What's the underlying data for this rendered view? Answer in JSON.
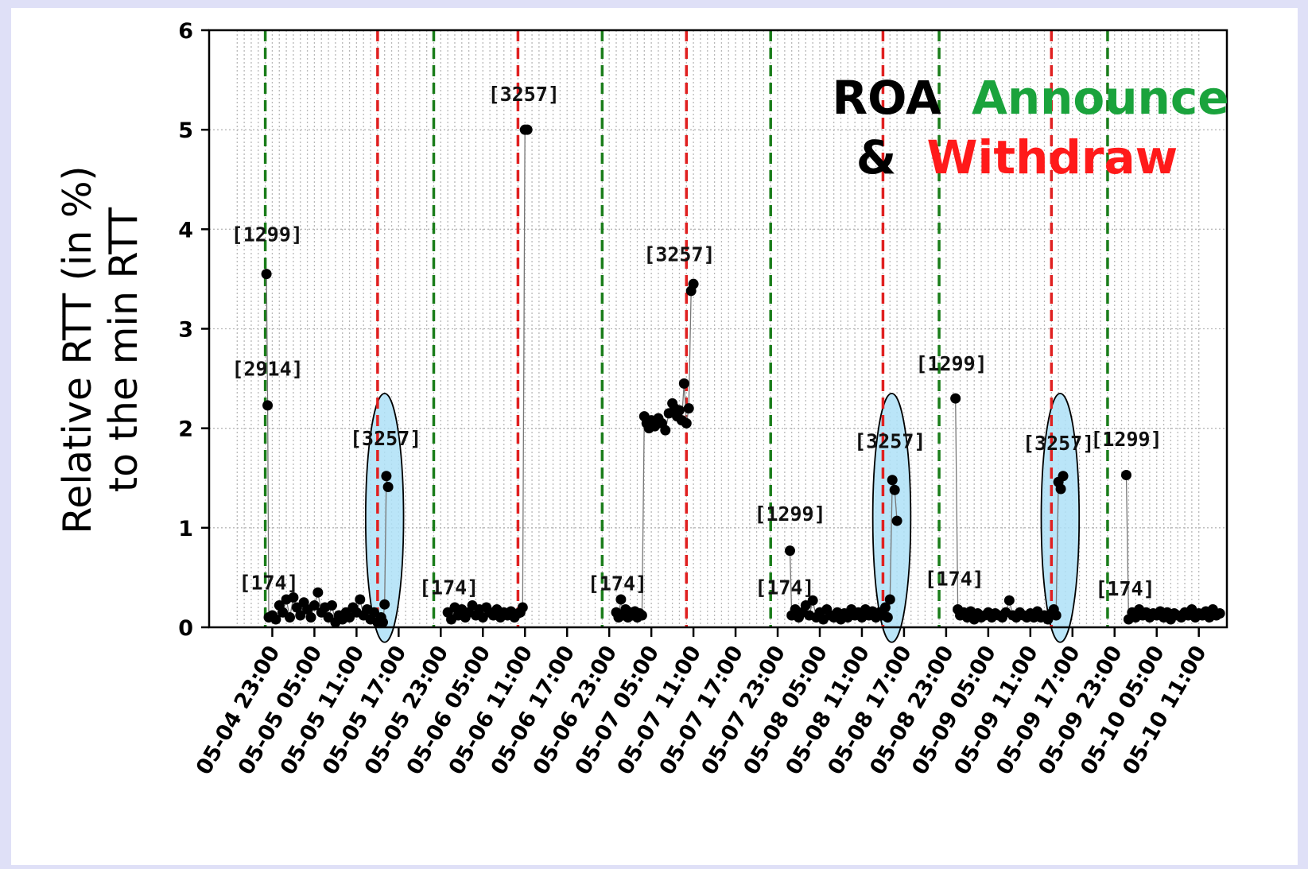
{
  "chart_data": {
    "type": "scatter",
    "title": "",
    "ylabel_lines": [
      "Relative RTT (in %)",
      "to the min RTT"
    ],
    "xlabel": "",
    "ylim": [
      0,
      6
    ],
    "y_ticks": [
      "0",
      "1",
      "2",
      "3",
      "4",
      "5",
      "6"
    ],
    "x_start": "2021-05-04 14:00",
    "x_end": "2021-05-10 15:00",
    "x_ticks": [
      "05-04 23:00",
      "05-05 05:00",
      "05-05 11:00",
      "05-05 17:00",
      "05-05 23:00",
      "05-06 05:00",
      "05-06 11:00",
      "05-06 17:00",
      "05-06 23:00",
      "05-07 05:00",
      "05-07 11:00",
      "05-07 17:00",
      "05-07 23:00",
      "05-08 05:00",
      "05-08 11:00",
      "05-08 17:00",
      "05-08 23:00",
      "05-09 05:00",
      "05-09 11:00",
      "05-09 17:00",
      "05-09 23:00",
      "05-10 05:00",
      "05-10 11:00"
    ],
    "grid": true,
    "legend": {
      "parts": [
        {
          "text": "ROA",
          "color": "#000000"
        },
        {
          "text": "Announce",
          "color": "#1aa33c"
        },
        {
          "text": "&",
          "color": "#000000"
        },
        {
          "text": "Withdraw",
          "color": "#ff1a1a"
        }
      ],
      "placement": "top-right"
    },
    "announce_color": "#1a7d1a",
    "withdraw_color": "#e02020",
    "highlight_color": "#aee0f7",
    "announce_times": [
      "2021-05-04 22:00",
      "2021-05-05 22:00",
      "2021-05-06 22:00",
      "2021-05-07 22:00",
      "2021-05-08 22:00",
      "2021-05-09 22:00"
    ],
    "withdraw_times": [
      "2021-05-05 14:00",
      "2021-05-06 10:00",
      "2021-05-07 10:00",
      "2021-05-08 14:00",
      "2021-05-09 14:00"
    ],
    "segments": [
      [
        [
          "2021-05-04 22:10",
          3.55
        ],
        [
          "2021-05-04 22:20",
          2.23
        ],
        [
          "2021-05-04 22:30",
          0.1
        ],
        [
          "2021-05-04 23:00",
          0.12
        ],
        [
          "2021-05-04 23:30",
          0.08
        ],
        [
          "2021-05-05 00:00",
          0.22
        ],
        [
          "2021-05-05 00:30",
          0.15
        ],
        [
          "2021-05-05 01:00",
          0.28
        ],
        [
          "2021-05-05 01:30",
          0.1
        ],
        [
          "2021-05-05 02:00",
          0.3
        ],
        [
          "2021-05-05 02:30",
          0.2
        ],
        [
          "2021-05-05 03:00",
          0.12
        ],
        [
          "2021-05-05 03:30",
          0.25
        ],
        [
          "2021-05-05 04:00",
          0.18
        ],
        [
          "2021-05-05 04:30",
          0.1
        ],
        [
          "2021-05-05 05:00",
          0.22
        ],
        [
          "2021-05-05 05:30",
          0.35
        ],
        [
          "2021-05-05 06:00",
          0.15
        ],
        [
          "2021-05-05 06:30",
          0.2
        ],
        [
          "2021-05-05 07:00",
          0.1
        ],
        [
          "2021-05-05 07:30",
          0.22
        ],
        [
          "2021-05-05 08:00",
          0.05
        ],
        [
          "2021-05-05 08:30",
          0.12
        ],
        [
          "2021-05-05 09:00",
          0.08
        ],
        [
          "2021-05-05 09:30",
          0.15
        ],
        [
          "2021-05-05 10:00",
          0.1
        ],
        [
          "2021-05-05 10:30",
          0.2
        ],
        [
          "2021-05-05 11:00",
          0.15
        ],
        [
          "2021-05-05 11:30",
          0.28
        ],
        [
          "2021-05-05 12:00",
          0.12
        ],
        [
          "2021-05-05 12:30",
          0.18
        ],
        [
          "2021-05-05 13:00",
          0.08
        ],
        [
          "2021-05-05 13:30",
          0.15
        ],
        [
          "2021-05-05 14:00",
          0.05
        ],
        [
          "2021-05-05 14:30",
          0.1
        ],
        [
          "2021-05-05 14:45",
          0.05
        ],
        [
          "2021-05-05 15:00",
          0.23
        ],
        [
          "2021-05-05 15:15",
          1.52
        ],
        [
          "2021-05-05 15:30",
          1.41
        ]
      ],
      [
        [
          "2021-05-06 00:00",
          0.15
        ],
        [
          "2021-05-06 00:30",
          0.08
        ],
        [
          "2021-05-06 01:00",
          0.2
        ],
        [
          "2021-05-06 01:30",
          0.12
        ],
        [
          "2021-05-06 02:00",
          0.18
        ],
        [
          "2021-05-06 02:30",
          0.1
        ],
        [
          "2021-05-06 03:00",
          0.15
        ],
        [
          "2021-05-06 03:30",
          0.22
        ],
        [
          "2021-05-06 04:00",
          0.12
        ],
        [
          "2021-05-06 04:30",
          0.18
        ],
        [
          "2021-05-06 05:00",
          0.1
        ],
        [
          "2021-05-06 05:30",
          0.2
        ],
        [
          "2021-05-06 06:00",
          0.15
        ],
        [
          "2021-05-06 06:30",
          0.12
        ],
        [
          "2021-05-06 07:00",
          0.18
        ],
        [
          "2021-05-06 07:30",
          0.1
        ],
        [
          "2021-05-06 08:00",
          0.15
        ],
        [
          "2021-05-06 08:30",
          0.12
        ],
        [
          "2021-05-06 09:00",
          0.16
        ],
        [
          "2021-05-06 09:30",
          0.1
        ],
        [
          "2021-05-06 10:00",
          0.14
        ],
        [
          "2021-05-06 10:20",
          0.15
        ],
        [
          "2021-05-06 10:40",
          0.2
        ],
        [
          "2021-05-06 11:00",
          5.0
        ],
        [
          "2021-05-06 11:20",
          5.0
        ]
      ],
      [
        [
          "2021-05-07 00:00",
          0.15
        ],
        [
          "2021-05-07 00:20",
          0.1
        ],
        [
          "2021-05-07 00:40",
          0.28
        ],
        [
          "2021-05-07 01:00",
          0.12
        ],
        [
          "2021-05-07 01:20",
          0.18
        ],
        [
          "2021-05-07 01:40",
          0.1
        ],
        [
          "2021-05-07 02:00",
          0.15
        ],
        [
          "2021-05-07 02:20",
          0.12
        ],
        [
          "2021-05-07 02:40",
          0.16
        ],
        [
          "2021-05-07 03:00",
          0.1
        ],
        [
          "2021-05-07 03:20",
          0.14
        ],
        [
          "2021-05-07 03:40",
          0.12
        ],
        [
          "2021-05-07 04:00",
          2.12
        ],
        [
          "2021-05-07 04:20",
          2.05
        ],
        [
          "2021-05-07 04:40",
          2.0
        ],
        [
          "2021-05-07 05:00",
          2.08
        ],
        [
          "2021-05-07 05:30",
          2.02
        ],
        [
          "2021-05-07 06:00",
          2.1
        ],
        [
          "2021-05-07 06:30",
          2.05
        ],
        [
          "2021-05-07 07:00",
          1.98
        ],
        [
          "2021-05-07 07:30",
          2.15
        ],
        [
          "2021-05-07 08:00",
          2.25
        ],
        [
          "2021-05-07 08:20",
          2.2
        ],
        [
          "2021-05-07 08:40",
          2.12
        ],
        [
          "2021-05-07 09:00",
          2.18
        ],
        [
          "2021-05-07 09:20",
          2.08
        ],
        [
          "2021-05-07 09:40",
          2.45
        ],
        [
          "2021-05-07 10:00",
          2.05
        ],
        [
          "2021-05-07 10:20",
          2.2
        ],
        [
          "2021-05-07 10:40",
          3.38
        ],
        [
          "2021-05-07 11:00",
          3.45
        ]
      ],
      [
        [
          "2021-05-08 00:45",
          0.77
        ],
        [
          "2021-05-08 01:00",
          0.12
        ],
        [
          "2021-05-08 01:30",
          0.18
        ],
        [
          "2021-05-08 02:00",
          0.1
        ],
        [
          "2021-05-08 02:30",
          0.15
        ],
        [
          "2021-05-08 03:00",
          0.22
        ],
        [
          "2021-05-08 03:30",
          0.12
        ],
        [
          "2021-05-08 04:00",
          0.27
        ],
        [
          "2021-05-08 04:30",
          0.1
        ],
        [
          "2021-05-08 05:00",
          0.15
        ],
        [
          "2021-05-08 05:30",
          0.08
        ],
        [
          "2021-05-08 06:00",
          0.18
        ],
        [
          "2021-05-08 06:30",
          0.12
        ],
        [
          "2021-05-08 07:00",
          0.1
        ],
        [
          "2021-05-08 07:30",
          0.15
        ],
        [
          "2021-05-08 08:00",
          0.08
        ],
        [
          "2021-05-08 08:30",
          0.14
        ],
        [
          "2021-05-08 09:00",
          0.1
        ],
        [
          "2021-05-08 09:30",
          0.18
        ],
        [
          "2021-05-08 10:00",
          0.12
        ],
        [
          "2021-05-08 10:30",
          0.15
        ],
        [
          "2021-05-08 11:00",
          0.1
        ],
        [
          "2021-05-08 11:30",
          0.18
        ],
        [
          "2021-05-08 12:00",
          0.12
        ],
        [
          "2021-05-08 12:30",
          0.16
        ],
        [
          "2021-05-08 13:00",
          0.1
        ],
        [
          "2021-05-08 13:30",
          0.15
        ],
        [
          "2021-05-08 14:00",
          0.12
        ],
        [
          "2021-05-08 14:20",
          0.2
        ],
        [
          "2021-05-08 14:40",
          0.1
        ],
        [
          "2021-05-08 15:00",
          0.28
        ],
        [
          "2021-05-08 15:20",
          1.48
        ],
        [
          "2021-05-08 15:40",
          1.38
        ],
        [
          "2021-05-08 16:00",
          1.07
        ]
      ],
      [
        [
          "2021-05-09 00:20",
          2.3
        ],
        [
          "2021-05-09 00:40",
          0.18
        ],
        [
          "2021-05-09 01:00",
          0.12
        ],
        [
          "2021-05-09 01:30",
          0.15
        ],
        [
          "2021-05-09 02:00",
          0.1
        ],
        [
          "2021-05-09 02:30",
          0.16
        ],
        [
          "2021-05-09 03:00",
          0.08
        ],
        [
          "2021-05-09 03:30",
          0.14
        ],
        [
          "2021-05-09 04:00",
          0.1
        ],
        [
          "2021-05-09 04:30",
          0.12
        ],
        [
          "2021-05-09 05:00",
          0.15
        ],
        [
          "2021-05-09 05:30",
          0.1
        ],
        [
          "2021-05-09 06:00",
          0.14
        ],
        [
          "2021-05-09 06:30",
          0.12
        ],
        [
          "2021-05-09 07:00",
          0.1
        ],
        [
          "2021-05-09 07:30",
          0.15
        ],
        [
          "2021-05-09 08:00",
          0.27
        ],
        [
          "2021-05-09 08:30",
          0.12
        ],
        [
          "2021-05-09 09:00",
          0.1
        ],
        [
          "2021-05-09 09:30",
          0.15
        ],
        [
          "2021-05-09 10:00",
          0.12
        ],
        [
          "2021-05-09 10:30",
          0.1
        ],
        [
          "2021-05-09 11:00",
          0.14
        ],
        [
          "2021-05-09 11:30",
          0.1
        ],
        [
          "2021-05-09 12:00",
          0.16
        ],
        [
          "2021-05-09 12:30",
          0.1
        ],
        [
          "2021-05-09 13:00",
          0.12
        ],
        [
          "2021-05-09 13:30",
          0.08
        ],
        [
          "2021-05-09 14:00",
          0.14
        ],
        [
          "2021-05-09 14:20",
          0.18
        ],
        [
          "2021-05-09 14:40",
          0.12
        ],
        [
          "2021-05-09 15:00",
          1.46
        ],
        [
          "2021-05-09 15:20",
          1.39
        ],
        [
          "2021-05-09 15:40",
          1.52
        ]
      ],
      [
        [
          "2021-05-10 00:40",
          1.53
        ],
        [
          "2021-05-10 01:00",
          0.08
        ],
        [
          "2021-05-10 01:30",
          0.15
        ],
        [
          "2021-05-10 02:00",
          0.1
        ],
        [
          "2021-05-10 02:30",
          0.18
        ],
        [
          "2021-05-10 03:00",
          0.12
        ],
        [
          "2021-05-10 03:30",
          0.15
        ],
        [
          "2021-05-10 04:00",
          0.1
        ],
        [
          "2021-05-10 04:30",
          0.14
        ],
        [
          "2021-05-10 05:00",
          0.12
        ],
        [
          "2021-05-10 05:30",
          0.16
        ],
        [
          "2021-05-10 06:00",
          0.1
        ],
        [
          "2021-05-10 06:30",
          0.15
        ],
        [
          "2021-05-10 07:00",
          0.08
        ],
        [
          "2021-05-10 07:30",
          0.14
        ],
        [
          "2021-05-10 08:00",
          0.12
        ],
        [
          "2021-05-10 08:30",
          0.1
        ],
        [
          "2021-05-10 09:00",
          0.15
        ],
        [
          "2021-05-10 09:30",
          0.12
        ],
        [
          "2021-05-10 10:00",
          0.18
        ],
        [
          "2021-05-10 10:30",
          0.1
        ],
        [
          "2021-05-10 11:00",
          0.14
        ],
        [
          "2021-05-10 11:30",
          0.12
        ],
        [
          "2021-05-10 12:00",
          0.16
        ],
        [
          "2021-05-10 12:30",
          0.1
        ],
        [
          "2021-05-10 13:00",
          0.18
        ],
        [
          "2021-05-10 13:30",
          0.12
        ],
        [
          "2021-05-10 14:00",
          0.14
        ]
      ]
    ],
    "highlights": [
      {
        "center_x": "2021-05-05 15:00",
        "center_y": 1.1,
        "rx_hours": 2.7,
        "ry": 1.25
      },
      {
        "center_x": "2021-05-08 15:15",
        "center_y": 1.1,
        "rx_hours": 2.7,
        "ry": 1.25
      },
      {
        "center_x": "2021-05-09 15:15",
        "center_y": 1.1,
        "rx_hours": 2.7,
        "ry": 1.25
      }
    ],
    "annotations": [
      {
        "text": "[1299]",
        "x": "2021-05-04 22:15",
        "y": 3.88
      },
      {
        "text": "[2914]",
        "x": "2021-05-04 22:20",
        "y": 2.53
      },
      {
        "text": "[174]",
        "x": "2021-05-04 22:30",
        "y": 0.38
      },
      {
        "text": "[3257]",
        "x": "2021-05-05 15:10",
        "y": 1.83
      },
      {
        "text": "[174]",
        "x": "2021-05-06 00:10",
        "y": 0.33
      },
      {
        "text": "[3257]",
        "x": "2021-05-06 10:50",
        "y": 5.29
      },
      {
        "text": "[174]",
        "x": "2021-05-07 00:10",
        "y": 0.37
      },
      {
        "text": "[3257]",
        "x": "2021-05-07 09:00",
        "y": 3.68
      },
      {
        "text": "[1299]",
        "x": "2021-05-08 00:45",
        "y": 1.07
      },
      {
        "text": "[174]",
        "x": "2021-05-08 00:00",
        "y": 0.33
      },
      {
        "text": "[3257]",
        "x": "2021-05-08 15:00",
        "y": 1.8
      },
      {
        "text": "[1299]",
        "x": "2021-05-08 23:45",
        "y": 2.58
      },
      {
        "text": "[174]",
        "x": "2021-05-09 00:10",
        "y": 0.42
      },
      {
        "text": "[3257]",
        "x": "2021-05-09 15:00",
        "y": 1.78
      },
      {
        "text": "[1299]",
        "x": "2021-05-10 00:40",
        "y": 1.82
      },
      {
        "text": "[174]",
        "x": "2021-05-10 00:30",
        "y": 0.32
      }
    ]
  }
}
